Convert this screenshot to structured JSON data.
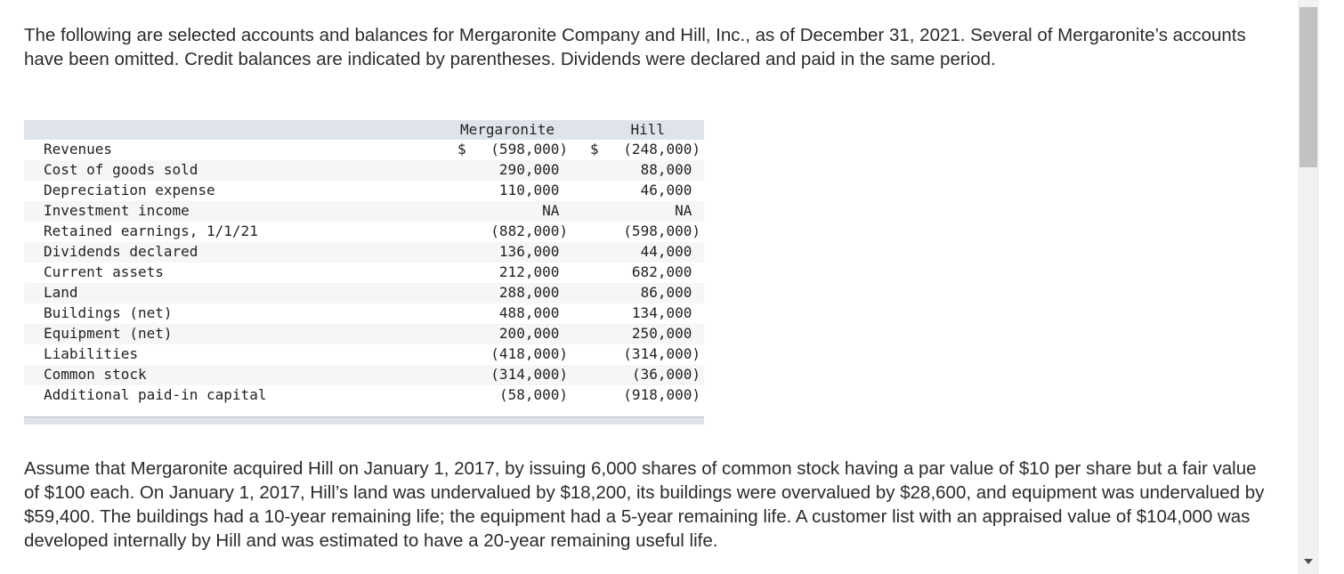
{
  "intro": "The following are selected accounts and balances for Mergaronite Company and Hill, Inc., as of December 31, 2021. Several of Mergaronite’s accounts have been omitted. Credit balances are indicated by parentheses. Dividends were declared and paid in the same period.",
  "table": {
    "headers": {
      "col1": "Mergaronite",
      "col2": "Hill"
    },
    "dollar_sign": "$",
    "rows": [
      {
        "label": "Revenues",
        "mergaronite": "(598,000)",
        "hill": "(248,000)"
      },
      {
        "label": "Cost of goods sold",
        "mergaronite": "290,000",
        "hill": "88,000"
      },
      {
        "label": "Depreciation expense",
        "mergaronite": "110,000",
        "hill": "46,000"
      },
      {
        "label": "Investment income",
        "mergaronite": "NA",
        "hill": "NA"
      },
      {
        "label": "Retained earnings, 1/1/21",
        "mergaronite": "(882,000)",
        "hill": "(598,000)"
      },
      {
        "label": "Dividends declared",
        "mergaronite": "136,000",
        "hill": "44,000"
      },
      {
        "label": "Current assets",
        "mergaronite": "212,000",
        "hill": "682,000"
      },
      {
        "label": "Land",
        "mergaronite": "288,000",
        "hill": "86,000"
      },
      {
        "label": "Buildings (net)",
        "mergaronite": "488,000",
        "hill": "134,000"
      },
      {
        "label": "Equipment (net)",
        "mergaronite": "200,000",
        "hill": "250,000"
      },
      {
        "label": "Liabilities",
        "mergaronite": "(418,000)",
        "hill": "(314,000)"
      },
      {
        "label": "Common stock",
        "mergaronite": "(314,000)",
        "hill": "(36,000)"
      },
      {
        "label": "Additional paid-in capital",
        "mergaronite": "(58,000)",
        "hill": "(918,000)"
      }
    ]
  },
  "assumption": "Assume that Mergaronite acquired Hill on January 1, 2017, by issuing 6,000 shares of common stock having a par value of $10 per share but a fair value of $100 each. On January 1, 2017, Hill’s land was undervalued by $18,200, its buildings were overvalued by $28,600, and equipment was undervalued by $59,400. The buildings had a 10-year remaining life; the equipment had a 5-year remaining life. A customer list with an appraised value of $104,000 was developed internally by Hill and was estimated to have a 20-year remaining useful life."
}
